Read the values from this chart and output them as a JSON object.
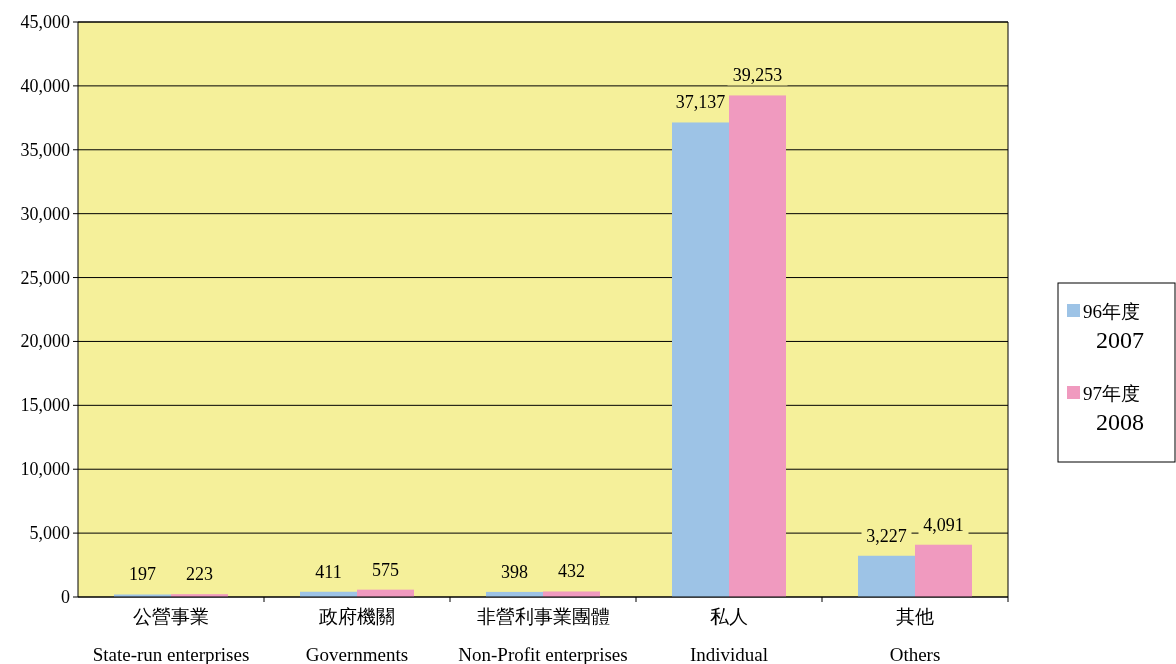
{
  "chart_data": {
    "type": "bar",
    "categories": [
      "公營事業\nState-run enterprises",
      "政府機關\nGovernments",
      "非營利事業團體\nNon-Profit enterprises",
      "私人\nIndividual",
      "其他\nOthers"
    ],
    "series": [
      {
        "name": "96年度\n2007",
        "color": "#9dc3e6",
        "values": [
          197,
          411,
          398,
          37137,
          3227
        ],
        "value_labels": [
          "197",
          "411",
          "398",
          "37,137",
          "3,227"
        ]
      },
      {
        "name": "97年度\n2008",
        "color": "#f09abf",
        "values": [
          223,
          575,
          432,
          39253,
          4091
        ],
        "value_labels": [
          "223",
          "575",
          "432",
          "39,253",
          "4,091"
        ]
      }
    ],
    "ylim": [
      0,
      45000
    ],
    "yticks": [
      {
        "value": 0,
        "label": "0"
      },
      {
        "value": 5000,
        "label": "5,000"
      },
      {
        "value": 10000,
        "label": "10,000"
      },
      {
        "value": 15000,
        "label": "15,000"
      },
      {
        "value": 20000,
        "label": "20,000"
      },
      {
        "value": 25000,
        "label": "25,000"
      },
      {
        "value": 30000,
        "label": "30,000"
      },
      {
        "value": 35000,
        "label": "35,000"
      },
      {
        "value": 40000,
        "label": "40,000"
      },
      {
        "value": 45000,
        "label": "45,000"
      }
    ],
    "grid": "y",
    "legend": "right"
  }
}
